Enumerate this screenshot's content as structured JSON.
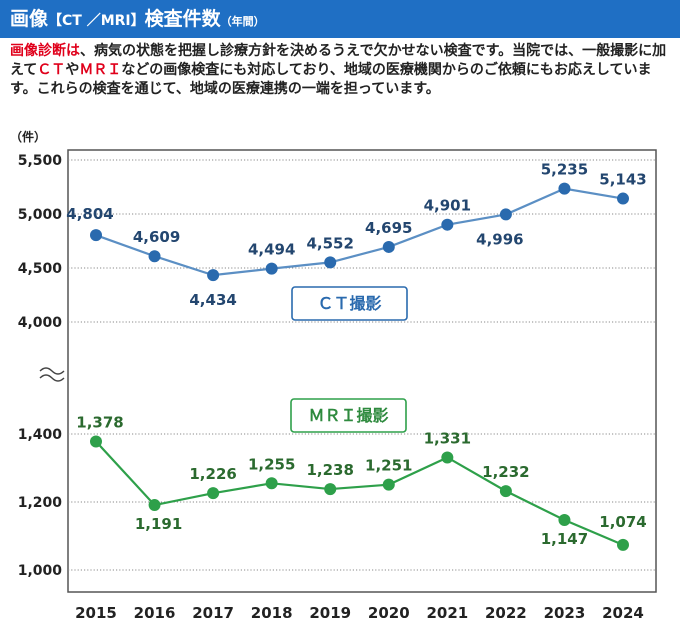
{
  "header": {
    "title_main": "画像",
    "title_sub": "【CT ／MRI】",
    "title_main2": "検査件数",
    "title_paren": "（年間）"
  },
  "intro": {
    "highlight": "画像診断は",
    "text_1": "、病気の状態を把握し診療方針を決めるうえで欠かせない検査です。当院では、一般撮影に加えて",
    "highlight_2": "ＣＴ",
    "text_2": "や",
    "highlight_3": "ＭＲＩ",
    "text_3": "などの画像検査にも対応しており、地域の医療機関からのご依頼にもお応えしています。これらの検査を通じて、地域の医療連携の一端を担っています。"
  },
  "chart_data": {
    "type": "line",
    "unit_label": "（件）",
    "categories": [
      "2015",
      "2016",
      "2017",
      "2018",
      "2019",
      "2020",
      "2021",
      "2022",
      "2023",
      "2024"
    ],
    "upper": {
      "ylim": [
        4000,
        5500
      ],
      "yticks": [
        "4,000",
        "4,500",
        "5,000",
        "5,500"
      ],
      "ytick_values": [
        4000,
        4500,
        5000,
        5500
      ],
      "series": {
        "name": "ＣＴ撮影",
        "values": [
          4804,
          4609,
          4434,
          4494,
          4552,
          4695,
          4901,
          4996,
          5235,
          5143
        ],
        "labels": [
          "4,804",
          "4,609",
          "4,434",
          "4,494",
          "4,552",
          "4,695",
          "4,901",
          "4,996",
          "5,235",
          "5,143"
        ],
        "color": "#5b8fc4",
        "marker": "#2a6aae",
        "label_color": "#23466f"
      }
    },
    "lower": {
      "ylim": [
        1000,
        1400
      ],
      "yticks": [
        "1,000",
        "1,200",
        "1,400"
      ],
      "ytick_values": [
        1000,
        1200,
        1400
      ],
      "series": {
        "name": "ＭＲＩ撮影",
        "values": [
          1378,
          1191,
          1226,
          1255,
          1238,
          1251,
          1331,
          1232,
          1147,
          1074
        ],
        "labels": [
          "1,378",
          "1,191",
          "1,226",
          "1,255",
          "1,238",
          "1,251",
          "1,331",
          "1,232",
          "1,147",
          "1,074"
        ],
        "color": "#2ea04a",
        "marker": "#2ea04a",
        "label_color": "#2b6a2f"
      }
    },
    "grid": true,
    "axis_break": true
  }
}
